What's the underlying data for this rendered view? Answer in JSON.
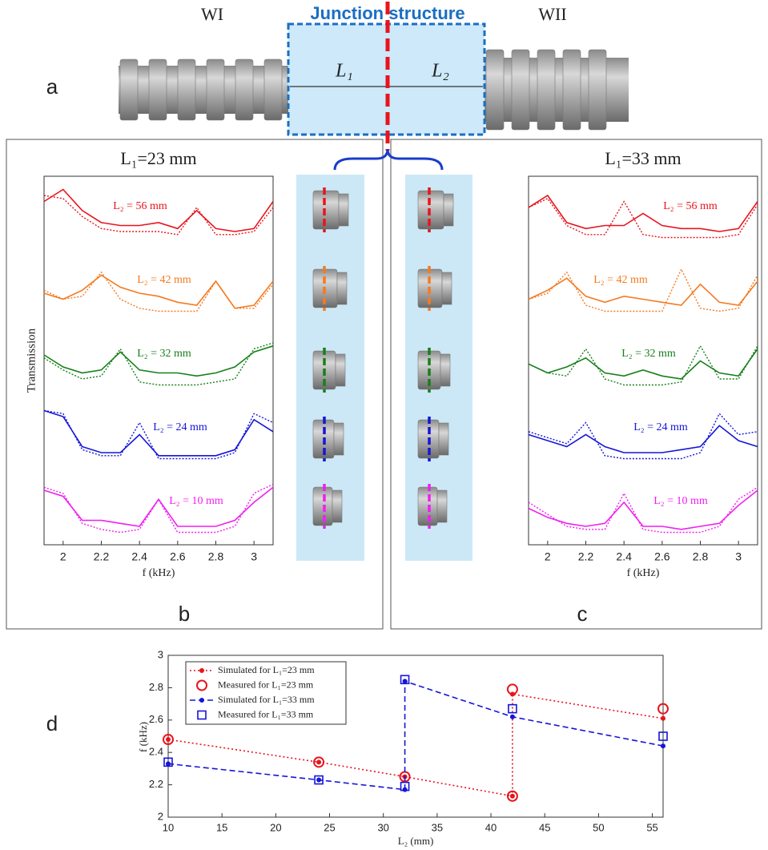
{
  "schematic": {
    "left_label": "WI",
    "junction_label": "Junction structure",
    "right_label": "WII",
    "l1_label": "L₁",
    "l2_label": "L₂"
  },
  "panel_labels": [
    "a",
    "b",
    "c",
    "d"
  ],
  "chart_data": [
    {
      "type": "spectra",
      "title": "L₁=23 mm",
      "xlabel": "f (kHz)",
      "ylabel": "Transmission",
      "x": [
        1.9,
        2.0,
        2.1,
        2.2,
        2.3,
        2.4,
        2.5,
        2.6,
        2.7,
        2.8,
        2.9,
        3.0,
        3.1
      ],
      "xlim": [
        1.9,
        3.1
      ],
      "xticks": [
        2,
        2.2,
        2.4,
        2.6,
        2.8,
        3
      ],
      "series": [
        {
          "name": "L₂ = 56 mm",
          "color": "#e8141c",
          "values": [
            0.7,
            0.9,
            0.55,
            0.35,
            0.3,
            0.3,
            0.35,
            0.25,
            0.55,
            0.25,
            0.2,
            0.25,
            0.7
          ],
          "simulated": [
            0.8,
            0.75,
            0.45,
            0.25,
            0.2,
            0.2,
            0.2,
            0.15,
            0.6,
            0.15,
            0.15,
            0.2,
            0.6
          ]
        },
        {
          "name": "L₂ = 42 mm",
          "color": "#f47a20",
          "values": [
            0.4,
            0.3,
            0.45,
            0.7,
            0.5,
            0.4,
            0.35,
            0.25,
            0.2,
            0.6,
            0.15,
            0.2,
            0.6
          ],
          "simulated": [
            0.45,
            0.3,
            0.35,
            0.75,
            0.3,
            0.15,
            0.1,
            0.1,
            0.1,
            0.6,
            0.15,
            0.15,
            0.55
          ]
        },
        {
          "name": "L₂ = 32 mm",
          "color": "#16801a",
          "values": [
            0.6,
            0.4,
            0.3,
            0.35,
            0.65,
            0.35,
            0.3,
            0.3,
            0.25,
            0.3,
            0.4,
            0.65,
            0.75
          ],
          "simulated": [
            0.55,
            0.35,
            0.2,
            0.25,
            0.7,
            0.15,
            0.1,
            0.1,
            0.1,
            0.15,
            0.2,
            0.7,
            0.8
          ]
        },
        {
          "name": "L₂ = 24 mm",
          "color": "#1515d8",
          "values": [
            0.9,
            0.8,
            0.3,
            0.2,
            0.2,
            0.5,
            0.15,
            0.15,
            0.15,
            0.15,
            0.25,
            0.75,
            0.55
          ],
          "simulated": [
            0.9,
            0.85,
            0.25,
            0.15,
            0.15,
            0.7,
            0.1,
            0.1,
            0.1,
            0.1,
            0.2,
            0.85,
            0.7
          ]
        },
        {
          "name": "L₂ = 10 mm",
          "color": "#f01ff0",
          "values": [
            0.8,
            0.7,
            0.3,
            0.3,
            0.25,
            0.2,
            0.65,
            0.2,
            0.2,
            0.2,
            0.3,
            0.6,
            0.85
          ],
          "simulated": [
            0.85,
            0.75,
            0.25,
            0.15,
            0.1,
            0.15,
            0.65,
            0.1,
            0.1,
            0.1,
            0.2,
            0.75,
            0.9
          ]
        }
      ]
    },
    {
      "type": "spectra",
      "title": "L₁=33 mm",
      "xlabel": "f (kHz)",
      "x": [
        1.9,
        2.0,
        2.1,
        2.2,
        2.3,
        2.4,
        2.5,
        2.6,
        2.7,
        2.8,
        2.9,
        3.0,
        3.1
      ],
      "xlim": [
        1.9,
        3.1
      ],
      "xticks": [
        2,
        2.2,
        2.4,
        2.6,
        2.8,
        3
      ],
      "series": [
        {
          "name": "L₂ = 56 mm",
          "color": "#e8141c",
          "values": [
            0.6,
            0.8,
            0.35,
            0.25,
            0.3,
            0.3,
            0.5,
            0.3,
            0.25,
            0.25,
            0.2,
            0.25,
            0.7
          ],
          "simulated": [
            0.6,
            0.75,
            0.3,
            0.15,
            0.15,
            0.7,
            0.15,
            0.1,
            0.1,
            0.1,
            0.1,
            0.15,
            0.65
          ]
        },
        {
          "name": "L₂ = 42 mm",
          "color": "#f47a20",
          "values": [
            0.3,
            0.45,
            0.65,
            0.35,
            0.25,
            0.35,
            0.3,
            0.25,
            0.2,
            0.55,
            0.25,
            0.2,
            0.6
          ],
          "simulated": [
            0.3,
            0.4,
            0.75,
            0.2,
            0.1,
            0.1,
            0.1,
            0.1,
            0.8,
            0.15,
            0.1,
            0.15,
            0.7
          ]
        },
        {
          "name": "L₂ = 32 mm",
          "color": "#16801a",
          "values": [
            0.45,
            0.3,
            0.4,
            0.55,
            0.3,
            0.25,
            0.35,
            0.25,
            0.2,
            0.5,
            0.3,
            0.25,
            0.7
          ],
          "simulated": [
            0.45,
            0.3,
            0.25,
            0.7,
            0.2,
            0.1,
            0.1,
            0.1,
            0.15,
            0.75,
            0.2,
            0.2,
            0.75
          ]
        },
        {
          "name": "L₂ = 24 mm",
          "color": "#1515d8",
          "values": [
            0.5,
            0.4,
            0.3,
            0.5,
            0.3,
            0.2,
            0.2,
            0.2,
            0.25,
            0.3,
            0.65,
            0.4,
            0.3
          ],
          "simulated": [
            0.55,
            0.45,
            0.35,
            0.7,
            0.15,
            0.1,
            0.1,
            0.1,
            0.1,
            0.2,
            0.85,
            0.5,
            0.55
          ]
        },
        {
          "name": "L₂ = 10 mm",
          "color": "#f01ff0",
          "values": [
            0.5,
            0.35,
            0.25,
            0.2,
            0.25,
            0.6,
            0.2,
            0.2,
            0.15,
            0.2,
            0.25,
            0.55,
            0.8
          ],
          "simulated": [
            0.6,
            0.4,
            0.2,
            0.15,
            0.15,
            0.75,
            0.15,
            0.1,
            0.1,
            0.1,
            0.2,
            0.65,
            0.85
          ]
        }
      ]
    },
    {
      "type": "line",
      "xlabel": "L₂ (mm)",
      "ylabel": "f (kHz)",
      "xlim": [
        10,
        56
      ],
      "xticks": [
        10,
        15,
        20,
        25,
        30,
        35,
        40,
        45,
        50,
        55
      ],
      "ylim": [
        2,
        3
      ],
      "yticks": [
        2,
        2.2,
        2.4,
        2.6,
        2.8,
        3
      ],
      "legend": "upper left",
      "series": [
        {
          "name": "Simulated for L₁=23 mm",
          "color": "#e8141c",
          "style": "dotted",
          "marker": "dot",
          "x": [
            10,
            24,
            32,
            42,
            42,
            56
          ],
          "values": [
            2.48,
            2.34,
            2.25,
            2.13,
            2.76,
            2.61
          ]
        },
        {
          "name": "Measured for L₁=23 mm",
          "color": "#e8141c",
          "style": "none",
          "marker": "circle",
          "x": [
            10,
            24,
            32,
            42,
            42,
            56
          ],
          "values": [
            2.48,
            2.34,
            2.25,
            2.13,
            2.79,
            2.67
          ]
        },
        {
          "name": "Simulated for L₁=33 mm",
          "color": "#1515d8",
          "style": "dashed",
          "marker": "dot",
          "x": [
            10,
            24,
            32,
            32,
            42,
            56
          ],
          "values": [
            2.33,
            2.23,
            2.17,
            2.84,
            2.62,
            2.44
          ]
        },
        {
          "name": "Measured for L₁=33 mm",
          "color": "#1515d8",
          "style": "none",
          "marker": "square",
          "x": [
            10,
            24,
            32,
            32,
            42,
            56
          ],
          "values": [
            2.34,
            2.23,
            2.19,
            2.85,
            2.67,
            2.5
          ]
        }
      ]
    }
  ]
}
